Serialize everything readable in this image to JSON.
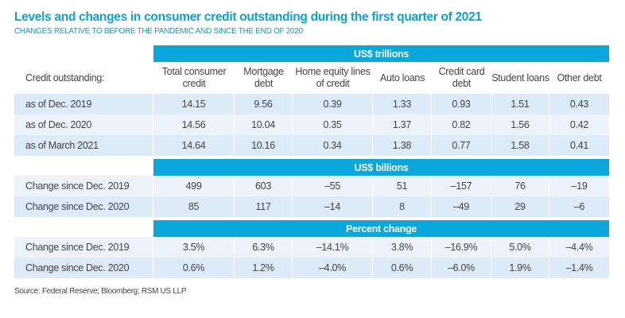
{
  "title": "Levels and changes in consumer credit outstanding during the first quarter of 2021",
  "subtitle": "CHANGES RELATIVE TO BEFORE THE PANDEMIC AND SINCE THE END OF 2020",
  "colors": {
    "banner": "#0aa7dc",
    "title": "#0aa0d8",
    "row_dark": "#dcebf7",
    "row_light": "#ecf3fa"
  },
  "row_header_label": "Credit outstanding:",
  "columns": [
    "Total consumer credit",
    "Mortgage debt",
    "Home equity lines of credit",
    "Auto loans",
    "Credit card debt",
    "Student loans",
    "Other debt"
  ],
  "sections": [
    {
      "banner": "US$ trillions",
      "rows": [
        {
          "label": "as of Dec. 2019",
          "values": [
            "14.15",
            "9.56",
            "0.39",
            "1.33",
            "0.93",
            "1.51",
            "0.43"
          ]
        },
        {
          "label": "as of Dec. 2020",
          "values": [
            "14.56",
            "10.04",
            "0.35",
            "1.37",
            "0.82",
            "1.56",
            "0.42"
          ]
        },
        {
          "label": "as of March 2021",
          "values": [
            "14.64",
            "10.16",
            "0.34",
            "1.38",
            "0.77",
            "1.58",
            "0.41"
          ]
        }
      ]
    },
    {
      "banner": "US$ billions",
      "rows": [
        {
          "label": "Change since Dec. 2019",
          "values": [
            "499",
            "603",
            "–55",
            "51",
            "–157",
            "76",
            "–19"
          ]
        },
        {
          "label": "Change since Dec. 2020",
          "values": [
            "85",
            "117",
            "–14",
            "8",
            "–49",
            "29",
            "–6"
          ]
        }
      ]
    },
    {
      "banner": "Percent change",
      "rows": [
        {
          "label": "Change since Dec. 2019",
          "values": [
            "3.5%",
            "6.3%",
            "–14.1%",
            "3.8%",
            "–16.9%",
            "5.0%",
            "–4.4%"
          ]
        },
        {
          "label": "Change since Dec. 2020",
          "values": [
            "0.6%",
            "1.2%",
            "–4.0%",
            "0.6%",
            "–6.0%",
            "1.9%",
            "–1.4%"
          ]
        }
      ]
    }
  ],
  "source": "Source: Federal Reserve; Bloomberg; RSM US LLP"
}
